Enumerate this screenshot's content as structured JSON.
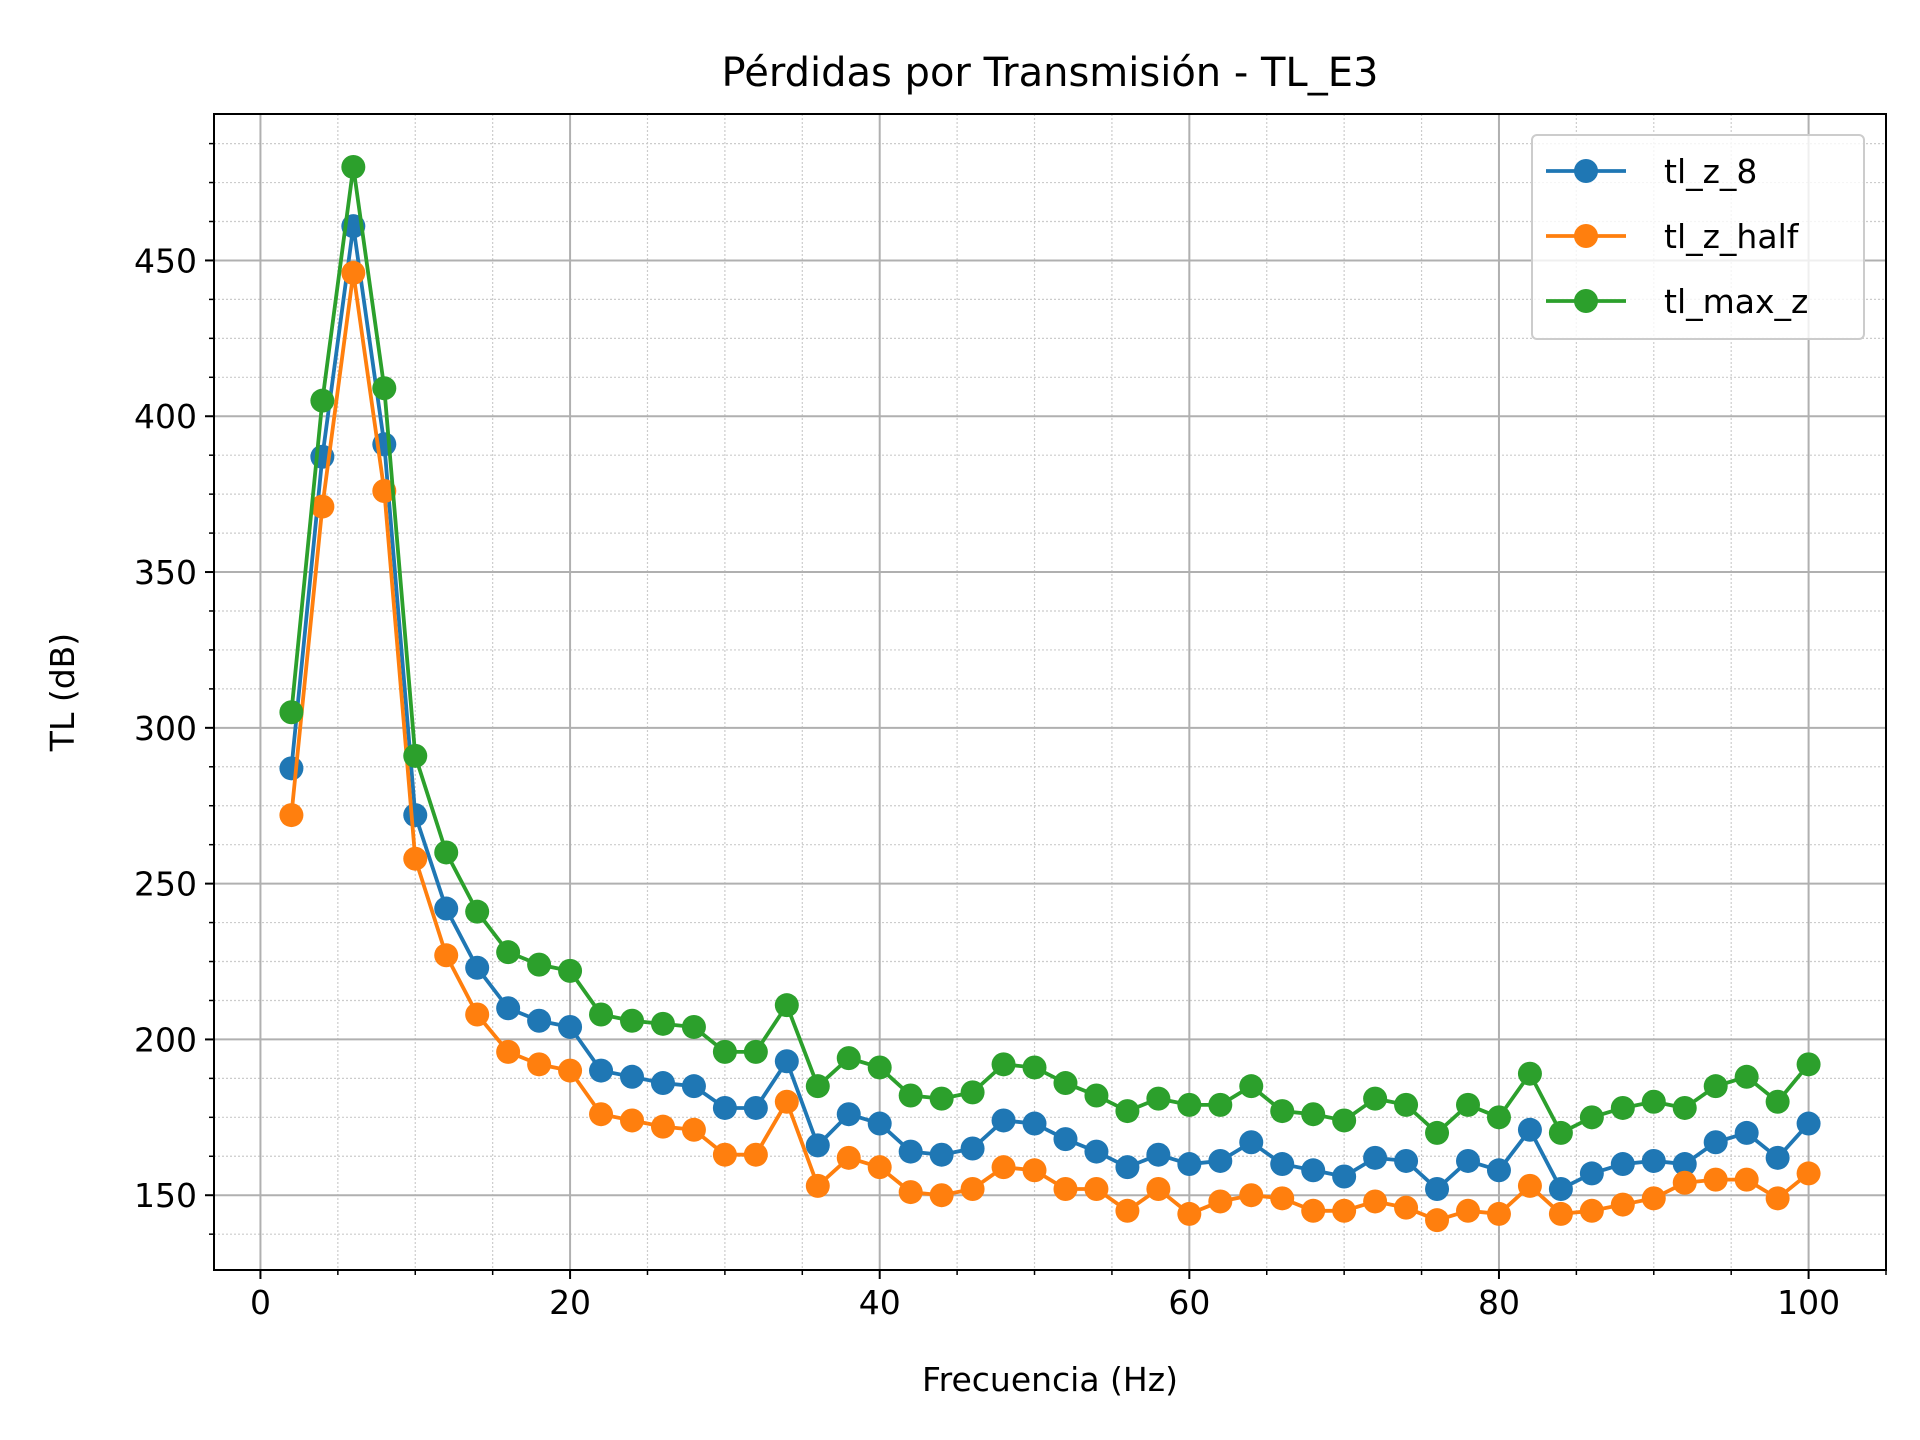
{
  "chart_data": {
    "type": "line",
    "title": "Pérdidas por Transmisión - TL_E3",
    "xlabel": "Frecuencia (Hz)",
    "ylabel": "TL (dB)",
    "xlim": [
      -3,
      105
    ],
    "ylim": [
      126,
      497
    ],
    "x_ticks": [
      0,
      20,
      40,
      60,
      80,
      100
    ],
    "y_ticks": [
      150,
      200,
      250,
      300,
      350,
      400,
      450
    ],
    "x_tick_labels": [
      "0",
      "20",
      "40",
      "60",
      "80",
      "100"
    ],
    "y_tick_labels": [
      "150",
      "200",
      "250",
      "300",
      "350",
      "400",
      "450"
    ],
    "x_minor_step": 5,
    "y_minor_step": 12.5,
    "grid": true,
    "minor_grid": true,
    "legend_position": "top-right",
    "x": [
      2,
      4,
      6,
      8,
      10,
      12,
      14,
      16,
      18,
      20,
      22,
      24,
      26,
      28,
      30,
      32,
      34,
      36,
      38,
      40,
      42,
      44,
      46,
      48,
      50,
      52,
      54,
      56,
      58,
      60,
      62,
      64,
      66,
      68,
      70,
      72,
      74,
      76,
      78,
      80,
      82,
      84,
      86,
      88,
      90,
      92,
      94,
      96,
      98,
      100
    ],
    "series": [
      {
        "name": "tl_z_8",
        "color": "#1f77b4",
        "values": [
          287,
          387,
          461,
          391,
          272,
          242,
          223,
          210,
          206,
          204,
          190,
          188,
          186,
          185,
          178,
          178,
          193,
          166,
          176,
          173,
          164,
          163,
          165,
          174,
          173,
          168,
          164,
          159,
          163,
          160,
          161,
          167,
          160,
          158,
          156,
          162,
          161,
          152,
          161,
          158,
          171,
          152,
          157,
          160,
          161,
          160,
          167,
          170,
          162,
          173
        ]
      },
      {
        "name": "tl_z_half",
        "color": "#ff7f0e",
        "values": [
          272,
          371,
          446,
          376,
          258,
          227,
          208,
          196,
          192,
          190,
          176,
          174,
          172,
          171,
          163,
          163,
          180,
          153,
          162,
          159,
          151,
          150,
          152,
          159,
          158,
          152,
          152,
          145,
          152,
          144,
          148,
          150,
          149,
          145,
          145,
          148,
          146,
          142,
          145,
          144,
          153,
          144,
          145,
          147,
          149,
          154,
          155,
          155,
          149,
          157
        ]
      },
      {
        "name": "tl_max_z",
        "color": "#2ca02c",
        "values": [
          305,
          405,
          480,
          409,
          291,
          260,
          241,
          228,
          224,
          222,
          208,
          206,
          205,
          204,
          196,
          196,
          211,
          185,
          194,
          191,
          182,
          181,
          183,
          192,
          191,
          186,
          182,
          177,
          181,
          179,
          179,
          185,
          177,
          176,
          174,
          181,
          179,
          170,
          179,
          175,
          189,
          170,
          175,
          178,
          180,
          178,
          185,
          188,
          180,
          192
        ]
      }
    ]
  }
}
